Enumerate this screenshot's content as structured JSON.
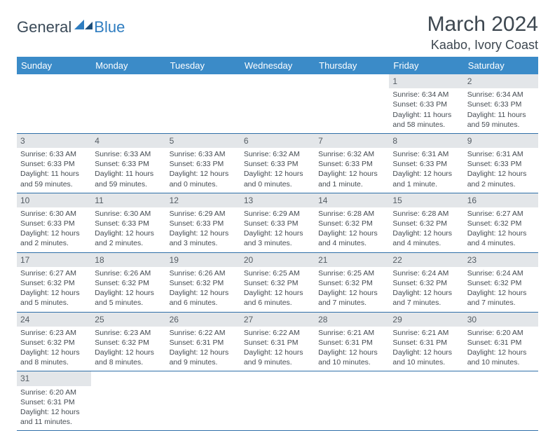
{
  "brand": {
    "part1": "General",
    "part2": "Blue"
  },
  "title": "March 2024",
  "location": "Kaabo, Ivory Coast",
  "colors": {
    "header_bg": "#3b8bc8",
    "header_text": "#ffffff",
    "row_divider": "#2f6fa8",
    "daynum_bg": "#e3e6e9",
    "body_text": "#444b52",
    "brand_blue": "#2f7dc0",
    "brand_dark": "#3a4a58"
  },
  "daysOfWeek": [
    "Sunday",
    "Monday",
    "Tuesday",
    "Wednesday",
    "Thursday",
    "Friday",
    "Saturday"
  ],
  "weeks": [
    [
      null,
      null,
      null,
      null,
      null,
      {
        "n": "1",
        "sr": "Sunrise: 6:34 AM",
        "ss": "Sunset: 6:33 PM",
        "dl": "Daylight: 11 hours and 58 minutes."
      },
      {
        "n": "2",
        "sr": "Sunrise: 6:34 AM",
        "ss": "Sunset: 6:33 PM",
        "dl": "Daylight: 11 hours and 59 minutes."
      }
    ],
    [
      {
        "n": "3",
        "sr": "Sunrise: 6:33 AM",
        "ss": "Sunset: 6:33 PM",
        "dl": "Daylight: 11 hours and 59 minutes."
      },
      {
        "n": "4",
        "sr": "Sunrise: 6:33 AM",
        "ss": "Sunset: 6:33 PM",
        "dl": "Daylight: 11 hours and 59 minutes."
      },
      {
        "n": "5",
        "sr": "Sunrise: 6:33 AM",
        "ss": "Sunset: 6:33 PM",
        "dl": "Daylight: 12 hours and 0 minutes."
      },
      {
        "n": "6",
        "sr": "Sunrise: 6:32 AM",
        "ss": "Sunset: 6:33 PM",
        "dl": "Daylight: 12 hours and 0 minutes."
      },
      {
        "n": "7",
        "sr": "Sunrise: 6:32 AM",
        "ss": "Sunset: 6:33 PM",
        "dl": "Daylight: 12 hours and 1 minute."
      },
      {
        "n": "8",
        "sr": "Sunrise: 6:31 AM",
        "ss": "Sunset: 6:33 PM",
        "dl": "Daylight: 12 hours and 1 minute."
      },
      {
        "n": "9",
        "sr": "Sunrise: 6:31 AM",
        "ss": "Sunset: 6:33 PM",
        "dl": "Daylight: 12 hours and 2 minutes."
      }
    ],
    [
      {
        "n": "10",
        "sr": "Sunrise: 6:30 AM",
        "ss": "Sunset: 6:33 PM",
        "dl": "Daylight: 12 hours and 2 minutes."
      },
      {
        "n": "11",
        "sr": "Sunrise: 6:30 AM",
        "ss": "Sunset: 6:33 PM",
        "dl": "Daylight: 12 hours and 2 minutes."
      },
      {
        "n": "12",
        "sr": "Sunrise: 6:29 AM",
        "ss": "Sunset: 6:33 PM",
        "dl": "Daylight: 12 hours and 3 minutes."
      },
      {
        "n": "13",
        "sr": "Sunrise: 6:29 AM",
        "ss": "Sunset: 6:33 PM",
        "dl": "Daylight: 12 hours and 3 minutes."
      },
      {
        "n": "14",
        "sr": "Sunrise: 6:28 AM",
        "ss": "Sunset: 6:32 PM",
        "dl": "Daylight: 12 hours and 4 minutes."
      },
      {
        "n": "15",
        "sr": "Sunrise: 6:28 AM",
        "ss": "Sunset: 6:32 PM",
        "dl": "Daylight: 12 hours and 4 minutes."
      },
      {
        "n": "16",
        "sr": "Sunrise: 6:27 AM",
        "ss": "Sunset: 6:32 PM",
        "dl": "Daylight: 12 hours and 4 minutes."
      }
    ],
    [
      {
        "n": "17",
        "sr": "Sunrise: 6:27 AM",
        "ss": "Sunset: 6:32 PM",
        "dl": "Daylight: 12 hours and 5 minutes."
      },
      {
        "n": "18",
        "sr": "Sunrise: 6:26 AM",
        "ss": "Sunset: 6:32 PM",
        "dl": "Daylight: 12 hours and 5 minutes."
      },
      {
        "n": "19",
        "sr": "Sunrise: 6:26 AM",
        "ss": "Sunset: 6:32 PM",
        "dl": "Daylight: 12 hours and 6 minutes."
      },
      {
        "n": "20",
        "sr": "Sunrise: 6:25 AM",
        "ss": "Sunset: 6:32 PM",
        "dl": "Daylight: 12 hours and 6 minutes."
      },
      {
        "n": "21",
        "sr": "Sunrise: 6:25 AM",
        "ss": "Sunset: 6:32 PM",
        "dl": "Daylight: 12 hours and 7 minutes."
      },
      {
        "n": "22",
        "sr": "Sunrise: 6:24 AM",
        "ss": "Sunset: 6:32 PM",
        "dl": "Daylight: 12 hours and 7 minutes."
      },
      {
        "n": "23",
        "sr": "Sunrise: 6:24 AM",
        "ss": "Sunset: 6:32 PM",
        "dl": "Daylight: 12 hours and 7 minutes."
      }
    ],
    [
      {
        "n": "24",
        "sr": "Sunrise: 6:23 AM",
        "ss": "Sunset: 6:32 PM",
        "dl": "Daylight: 12 hours and 8 minutes."
      },
      {
        "n": "25",
        "sr": "Sunrise: 6:23 AM",
        "ss": "Sunset: 6:32 PM",
        "dl": "Daylight: 12 hours and 8 minutes."
      },
      {
        "n": "26",
        "sr": "Sunrise: 6:22 AM",
        "ss": "Sunset: 6:31 PM",
        "dl": "Daylight: 12 hours and 9 minutes."
      },
      {
        "n": "27",
        "sr": "Sunrise: 6:22 AM",
        "ss": "Sunset: 6:31 PM",
        "dl": "Daylight: 12 hours and 9 minutes."
      },
      {
        "n": "28",
        "sr": "Sunrise: 6:21 AM",
        "ss": "Sunset: 6:31 PM",
        "dl": "Daylight: 12 hours and 10 minutes."
      },
      {
        "n": "29",
        "sr": "Sunrise: 6:21 AM",
        "ss": "Sunset: 6:31 PM",
        "dl": "Daylight: 12 hours and 10 minutes."
      },
      {
        "n": "30",
        "sr": "Sunrise: 6:20 AM",
        "ss": "Sunset: 6:31 PM",
        "dl": "Daylight: 12 hours and 10 minutes."
      }
    ],
    [
      {
        "n": "31",
        "sr": "Sunrise: 6:20 AM",
        "ss": "Sunset: 6:31 PM",
        "dl": "Daylight: 12 hours and 11 minutes."
      },
      null,
      null,
      null,
      null,
      null,
      null
    ]
  ]
}
